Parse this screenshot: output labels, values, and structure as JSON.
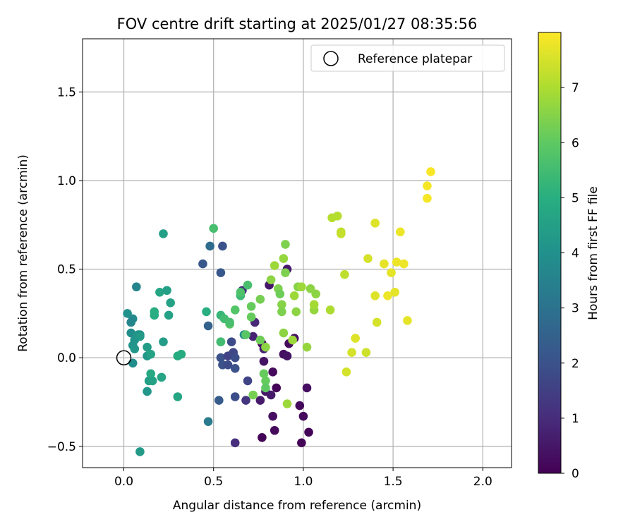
{
  "chart_data": {
    "type": "scatter",
    "title": "FOV centre drift starting at 2025/01/27 08:35:56",
    "xlabel": "Angular distance from reference (arcmin)",
    "ylabel": "Rotation from reference (arcmin)",
    "xlim": [
      -0.23,
      2.16
    ],
    "ylim": [
      -0.62,
      1.8
    ],
    "xticks": [
      0.0,
      0.5,
      1.0,
      1.5,
      2.0
    ],
    "xtick_labels": [
      "0.0",
      "0.5",
      "1.0",
      "1.5",
      "2.0"
    ],
    "yticks": [
      -0.5,
      0.0,
      0.5,
      1.0,
      1.5
    ],
    "ytick_labels": [
      "−0.5",
      "0.0",
      "0.5",
      "1.0",
      "1.5"
    ],
    "grid": true,
    "legend": {
      "position": "top-right",
      "entries": [
        {
          "label": "Reference platepar",
          "marker": "open-circle"
        }
      ]
    },
    "reference_point": {
      "x": 0.0,
      "y": 0.0
    },
    "colorbar": {
      "label": "Hours from first FF file",
      "colormap": "viridis",
      "range": [
        0,
        8
      ],
      "ticks": [
        0,
        1,
        2,
        3,
        4,
        5,
        6,
        7
      ],
      "tick_labels": [
        "0",
        "1",
        "2",
        "3",
        "4",
        "5",
        "6",
        "7"
      ]
    },
    "points": [
      {
        "x": 0.77,
        "y": 0.08,
        "h": 0.3
      },
      {
        "x": 0.83,
        "y": -0.08,
        "h": 0.2
      },
      {
        "x": 0.85,
        "y": -0.17,
        "h": 0.1
      },
      {
        "x": 0.83,
        "y": -0.33,
        "h": 0.3
      },
      {
        "x": 0.84,
        "y": -0.41,
        "h": 0.2
      },
      {
        "x": 0.77,
        "y": -0.45,
        "h": 0.1
      },
      {
        "x": 0.89,
        "y": 0.02,
        "h": 0.3
      },
      {
        "x": 0.92,
        "y": 0.08,
        "h": 0.2
      },
      {
        "x": 0.95,
        "y": 0.11,
        "h": 0.3
      },
      {
        "x": 0.98,
        "y": -0.27,
        "h": 0.2
      },
      {
        "x": 0.99,
        "y": -0.48,
        "h": 0.1
      },
      {
        "x": 1.0,
        "y": -0.33,
        "h": 0.2
      },
      {
        "x": 1.02,
        "y": -0.17,
        "h": 0.3
      },
      {
        "x": 1.03,
        "y": -0.42,
        "h": 0.1
      },
      {
        "x": 0.81,
        "y": 0.41,
        "h": 0.5
      },
      {
        "x": 0.91,
        "y": 0.5,
        "h": 0.6
      },
      {
        "x": 0.91,
        "y": 0.01,
        "h": 0.4
      },
      {
        "x": 0.78,
        "y": -0.02,
        "h": 0.4
      },
      {
        "x": 0.79,
        "y": -0.19,
        "h": 0.5
      },
      {
        "x": 0.82,
        "y": -0.21,
        "h": 0.6
      },
      {
        "x": 0.76,
        "y": -0.24,
        "h": 0.6
      },
      {
        "x": 0.72,
        "y": 0.12,
        "h": 0.8
      },
      {
        "x": 0.73,
        "y": 0.2,
        "h": 0.9
      },
      {
        "x": 0.66,
        "y": 0.38,
        "h": 1.0
      },
      {
        "x": 0.62,
        "y": -0.48,
        "h": 1.0
      },
      {
        "x": 0.68,
        "y": -0.24,
        "h": 1.2
      },
      {
        "x": 0.78,
        "y": 0.05,
        "h": 0.7
      },
      {
        "x": 0.69,
        "y": -0.13,
        "h": 1.6
      },
      {
        "x": 0.62,
        "y": -0.22,
        "h": 1.9
      },
      {
        "x": 0.54,
        "y": 0.0,
        "h": 2.0
      },
      {
        "x": 0.55,
        "y": -0.04,
        "h": 2.0
      },
      {
        "x": 0.58,
        "y": -0.04,
        "h": 1.8
      },
      {
        "x": 0.62,
        "y": -0.06,
        "h": 2.0
      },
      {
        "x": 0.58,
        "y": 0.01,
        "h": 1.6
      },
      {
        "x": 0.61,
        "y": 0.03,
        "h": 1.7
      },
      {
        "x": 0.62,
        "y": 0.0,
        "h": 1.9
      },
      {
        "x": 0.6,
        "y": 0.09,
        "h": 1.8
      },
      {
        "x": 0.53,
        "y": -0.24,
        "h": 2.3
      },
      {
        "x": 0.44,
        "y": 0.53,
        "h": 2.2
      },
      {
        "x": 0.47,
        "y": 0.18,
        "h": 2.5
      },
      {
        "x": 0.54,
        "y": 0.48,
        "h": 2.2
      },
      {
        "x": 0.55,
        "y": 0.63,
        "h": 2.0
      },
      {
        "x": 0.48,
        "y": 0.63,
        "h": 2.8
      },
      {
        "x": 0.47,
        "y": -0.36,
        "h": 3.3
      },
      {
        "x": 0.67,
        "y": 0.13,
        "h": 3.7
      },
      {
        "x": 0.07,
        "y": 0.4,
        "h": 3.6
      },
      {
        "x": 0.02,
        "y": 0.25,
        "h": 4.0
      },
      {
        "x": 0.05,
        "y": 0.22,
        "h": 3.8
      },
      {
        "x": 0.04,
        "y": 0.2,
        "h": 3.6
      },
      {
        "x": 0.04,
        "y": 0.14,
        "h": 3.9
      },
      {
        "x": 0.06,
        "y": 0.1,
        "h": 4.1
      },
      {
        "x": 0.08,
        "y": 0.13,
        "h": 4.2
      },
      {
        "x": 0.09,
        "y": 0.13,
        "h": 4.0
      },
      {
        "x": 0.09,
        "y": 0.12,
        "h": 4.3
      },
      {
        "x": 0.05,
        "y": 0.07,
        "h": 4.1
      },
      {
        "x": 0.06,
        "y": 0.05,
        "h": 4.2
      },
      {
        "x": 0.05,
        "y": -0.03,
        "h": 3.9
      },
      {
        "x": 0.09,
        "y": -0.53,
        "h": 4.3
      },
      {
        "x": 0.13,
        "y": -0.19,
        "h": 4.2
      },
      {
        "x": 0.14,
        "y": -0.13,
        "h": 4.4
      },
      {
        "x": 0.15,
        "y": -0.09,
        "h": 4.8
      },
      {
        "x": 0.16,
        "y": -0.13,
        "h": 4.6
      },
      {
        "x": 0.13,
        "y": 0.01,
        "h": 4.2
      },
      {
        "x": 0.13,
        "y": 0.06,
        "h": 4.4
      },
      {
        "x": 0.15,
        "y": 0.02,
        "h": 4.6
      },
      {
        "x": 0.17,
        "y": 0.24,
        "h": 4.9
      },
      {
        "x": 0.17,
        "y": 0.26,
        "h": 5.0
      },
      {
        "x": 0.2,
        "y": 0.37,
        "h": 4.7
      },
      {
        "x": 0.22,
        "y": 0.7,
        "h": 4.5
      },
      {
        "x": 0.22,
        "y": 0.09,
        "h": 4.4
      },
      {
        "x": 0.24,
        "y": 0.38,
        "h": 4.5
      },
      {
        "x": 0.25,
        "y": 0.24,
        "h": 4.6
      },
      {
        "x": 0.26,
        "y": 0.31,
        "h": 4.6
      },
      {
        "x": 0.21,
        "y": -0.11,
        "h": 4.7
      },
      {
        "x": 0.3,
        "y": -0.22,
        "h": 4.7
      },
      {
        "x": 0.3,
        "y": 0.01,
        "h": 4.9
      },
      {
        "x": 0.32,
        "y": 0.02,
        "h": 4.9
      },
      {
        "x": 0.46,
        "y": 0.26,
        "h": 5.0
      },
      {
        "x": 0.5,
        "y": 0.73,
        "h": 5.6
      },
      {
        "x": 0.54,
        "y": 0.09,
        "h": 5.4
      },
      {
        "x": 0.54,
        "y": 0.09,
        "h": 5.5
      },
      {
        "x": 0.54,
        "y": 0.24,
        "h": 5.3
      },
      {
        "x": 0.56,
        "y": 0.22,
        "h": 5.5
      },
      {
        "x": 0.59,
        "y": 0.19,
        "h": 5.9
      },
      {
        "x": 0.59,
        "y": 0.2,
        "h": 5.6
      },
      {
        "x": 0.62,
        "y": 0.27,
        "h": 5.8
      },
      {
        "x": 0.65,
        "y": 0.35,
        "h": 5.4
      },
      {
        "x": 0.65,
        "y": 0.37,
        "h": 5.7
      },
      {
        "x": 0.68,
        "y": 0.13,
        "h": 5.9
      },
      {
        "x": 0.69,
        "y": 0.41,
        "h": 5.6
      },
      {
        "x": 0.71,
        "y": 0.23,
        "h": 6.1
      },
      {
        "x": 0.71,
        "y": 0.29,
        "h": 6.1
      },
      {
        "x": 0.72,
        "y": -0.21,
        "h": 6.3
      },
      {
        "x": 0.76,
        "y": 0.1,
        "h": 6.2
      },
      {
        "x": 0.76,
        "y": 0.33,
        "h": 6.3
      },
      {
        "x": 0.78,
        "y": -0.09,
        "h": 6.1
      },
      {
        "x": 0.79,
        "y": -0.13,
        "h": 6.1
      },
      {
        "x": 0.79,
        "y": -0.17,
        "h": 6.0
      },
      {
        "x": 0.79,
        "y": 0.06,
        "h": 6.6
      },
      {
        "x": 0.82,
        "y": 0.44,
        "h": 6.6
      },
      {
        "x": 0.84,
        "y": 0.52,
        "h": 6.8
      },
      {
        "x": 0.86,
        "y": 0.39,
        "h": 6.4
      },
      {
        "x": 0.87,
        "y": 0.36,
        "h": 6.2
      },
      {
        "x": 0.88,
        "y": 0.3,
        "h": 6.5
      },
      {
        "x": 0.88,
        "y": 0.26,
        "h": 6.4
      },
      {
        "x": 0.89,
        "y": 0.56,
        "h": 6.7
      },
      {
        "x": 0.89,
        "y": 0.14,
        "h": 6.6
      },
      {
        "x": 0.9,
        "y": 0.64,
        "h": 6.4
      },
      {
        "x": 0.9,
        "y": 0.48,
        "h": 6.4
      },
      {
        "x": 0.91,
        "y": -0.26,
        "h": 6.8
      },
      {
        "x": 0.94,
        "y": 0.1,
        "h": 6.8
      },
      {
        "x": 0.95,
        "y": 0.35,
        "h": 6.8
      },
      {
        "x": 0.96,
        "y": 0.26,
        "h": 6.6
      },
      {
        "x": 0.97,
        "y": 0.4,
        "h": 6.5
      },
      {
        "x": 0.99,
        "y": 0.4,
        "h": 6.8
      },
      {
        "x": 1.02,
        "y": 0.06,
        "h": 6.7
      },
      {
        "x": 1.04,
        "y": 0.39,
        "h": 6.6
      },
      {
        "x": 1.06,
        "y": 0.27,
        "h": 6.7
      },
      {
        "x": 1.06,
        "y": 0.3,
        "h": 6.9
      },
      {
        "x": 1.07,
        "y": 0.36,
        "h": 6.6
      },
      {
        "x": 1.15,
        "y": 0.27,
        "h": 7.0
      },
      {
        "x": 1.16,
        "y": 0.79,
        "h": 7.1
      },
      {
        "x": 1.19,
        "y": 0.8,
        "h": 7.1
      },
      {
        "x": 1.21,
        "y": 0.71,
        "h": 7.2
      },
      {
        "x": 1.21,
        "y": 0.7,
        "h": 7.3
      },
      {
        "x": 1.23,
        "y": 0.47,
        "h": 7.2
      },
      {
        "x": 1.24,
        "y": -0.08,
        "h": 7.5
      },
      {
        "x": 1.27,
        "y": 0.03,
        "h": 7.5
      },
      {
        "x": 1.29,
        "y": 0.11,
        "h": 7.6
      },
      {
        "x": 1.35,
        "y": 0.03,
        "h": 7.4
      },
      {
        "x": 1.36,
        "y": 0.56,
        "h": 7.5
      },
      {
        "x": 1.4,
        "y": 0.76,
        "h": 7.6
      },
      {
        "x": 1.4,
        "y": 0.35,
        "h": 7.6
      },
      {
        "x": 1.41,
        "y": 0.2,
        "h": 7.5
      },
      {
        "x": 1.45,
        "y": 0.53,
        "h": 7.7
      },
      {
        "x": 1.47,
        "y": 0.35,
        "h": 7.8
      },
      {
        "x": 1.49,
        "y": 0.48,
        "h": 7.7
      },
      {
        "x": 1.51,
        "y": 0.37,
        "h": 7.7
      },
      {
        "x": 1.52,
        "y": 0.54,
        "h": 7.8
      },
      {
        "x": 1.54,
        "y": 0.71,
        "h": 7.8
      },
      {
        "x": 1.56,
        "y": 0.53,
        "h": 7.8
      },
      {
        "x": 1.58,
        "y": 0.21,
        "h": 7.7
      },
      {
        "x": 1.69,
        "y": 0.97,
        "h": 7.9
      },
      {
        "x": 1.69,
        "y": 0.9,
        "h": 7.9
      },
      {
        "x": 1.71,
        "y": 1.05,
        "h": 7.95
      }
    ]
  }
}
